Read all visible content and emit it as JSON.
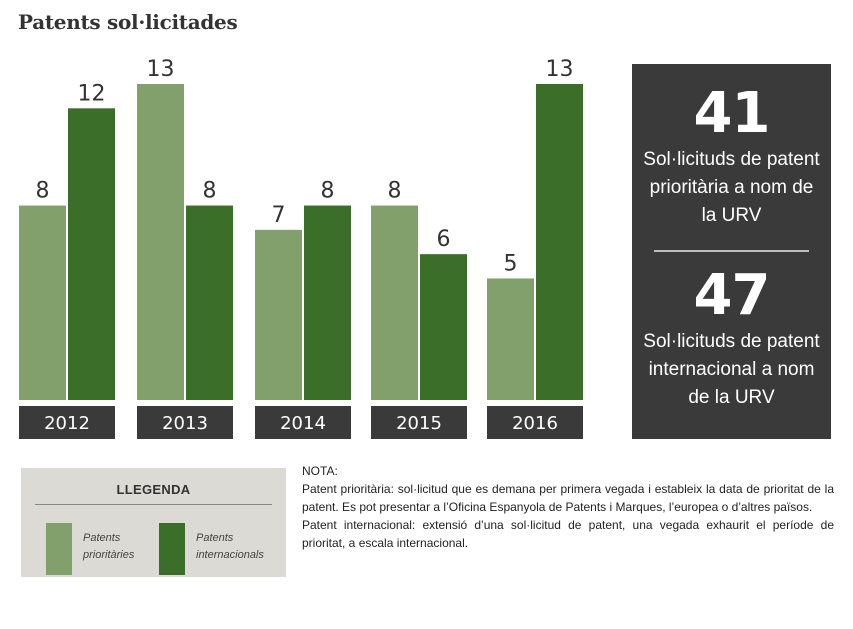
{
  "title": "Patents sol·licitades",
  "chart_data": {
    "type": "bar",
    "title": "Patents sol·licitades",
    "categories": [
      "2012",
      "2013",
      "2014",
      "2015",
      "2016"
    ],
    "series": [
      {
        "name": "Patents prioritàries",
        "color": "#82a06c",
        "values": [
          8,
          13,
          7,
          8,
          5
        ]
      },
      {
        "name": "Patents internacionals",
        "color": "#3b6e28",
        "values": [
          12,
          8,
          8,
          6,
          13
        ]
      }
    ],
    "ylim": [
      0,
      13
    ],
    "grid": false,
    "data_labels": true
  },
  "summary": {
    "total_priority": "41",
    "total_priority_text": "Sol·licituds de patent prioritària a nom de la URV",
    "total_international": "47",
    "total_international_text": "Sol·licituds de patent internacional a nom de la URV"
  },
  "legend": {
    "title": "LLEGENDA",
    "items": [
      {
        "label": "Patents prioritàries",
        "color": "#82a06c"
      },
      {
        "label": "Patents internacionals",
        "color": "#3b6e28"
      }
    ]
  },
  "note": {
    "heading": "NOTA:",
    "priority": "Patent prioritària: sol·licitud que es demana per primera vegada i estableix la data de prioritat de la patent. Es pot presentar a l’Oficina Espanyola de Patents i Marques, l’europea o d’altres països.",
    "international": "Patent internacional: extensió d’una sol·licitud de patent, una vegada exhaurit el període de prioritat, a escala internacional."
  },
  "colors": {
    "category_bar": "#3a3a3a",
    "label_text": "#333333"
  }
}
